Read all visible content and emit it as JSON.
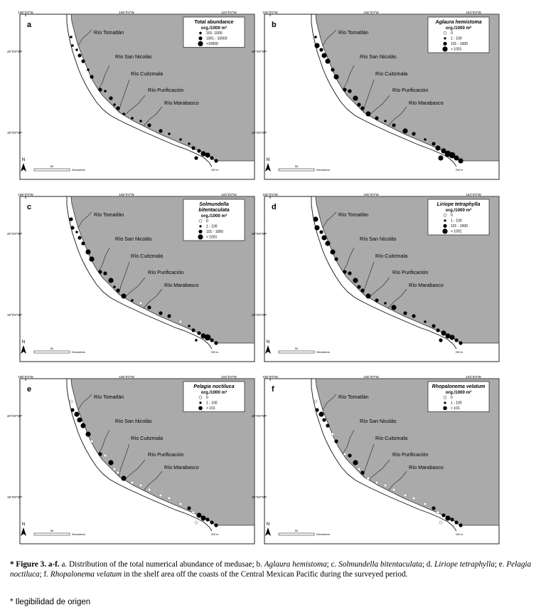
{
  "lon_ticks": [
    "106°0'0\"W",
    "105°0'0\"W",
    "104°0'0\"W"
  ],
  "lat_ticks": [
    "20°0'0\"N",
    "19°0'0\"N"
  ],
  "scale": {
    "value": "50",
    "unit": "Kilometers"
  },
  "north": "N",
  "isobath": "200 m",
  "rivers": [
    "Río Tomatlán",
    "Río San Nicolás",
    "Río Cuitzmala",
    "Río Purificación",
    "Río Marabasco"
  ],
  "panels": [
    {
      "letter": "a",
      "title": "Total abundance",
      "unit": "org./1000 m³",
      "legend": [
        {
          "label": "101- 1000",
          "size": 1.8,
          "fill": "#000"
        },
        {
          "label": "1001 - 10000",
          "size": 2.6,
          "fill": "#000"
        },
        {
          "label": ">10000",
          "size": 3.6,
          "fill": "#000"
        }
      ]
    },
    {
      "letter": "b",
      "title": "Aglaura hemistoma",
      "unit": "org./1000 m³",
      "legend": [
        {
          "label": "0",
          "size": 2.0,
          "fill": "#fff"
        },
        {
          "label": "1 - 100",
          "size": 1.6,
          "fill": "#000"
        },
        {
          "label": "101 - 1000",
          "size": 2.6,
          "fill": "#000"
        },
        {
          "label": "> 1001",
          "size": 3.6,
          "fill": "#000"
        }
      ]
    },
    {
      "letter": "c",
      "title": "Solmundella bitentaculata",
      "unit": "org./1000 m³",
      "legend": [
        {
          "label": "0",
          "size": 2.0,
          "fill": "#fff"
        },
        {
          "label": "1 - 100",
          "size": 1.6,
          "fill": "#000"
        },
        {
          "label": "101 - 1000",
          "size": 2.6,
          "fill": "#000"
        },
        {
          "label": "> 1001",
          "size": 3.6,
          "fill": "#000"
        }
      ]
    },
    {
      "letter": "d",
      "title": "Liriope tetraphylla",
      "unit": "org./1000 m³",
      "legend": [
        {
          "label": "0",
          "size": 2.0,
          "fill": "#fff"
        },
        {
          "label": "1 - 100",
          "size": 1.6,
          "fill": "#000"
        },
        {
          "label": "101 - 1000",
          "size": 2.6,
          "fill": "#000"
        },
        {
          "label": "> 1001",
          "size": 3.6,
          "fill": "#000"
        }
      ]
    },
    {
      "letter": "e",
      "title": "Pelagia noctiluca",
      "unit": "org./1000 m³",
      "legend": [
        {
          "label": "0",
          "size": 2.0,
          "fill": "#fff"
        },
        {
          "label": "1 - 100",
          "size": 1.6,
          "fill": "#000"
        },
        {
          "label": "> 101",
          "size": 2.8,
          "fill": "#000"
        }
      ]
    },
    {
      "letter": "f",
      "title": "Rhopalonema velatum",
      "unit": "org./1000 m³",
      "legend": [
        {
          "label": "0",
          "size": 2.0,
          "fill": "#fff"
        },
        {
          "label": "1 - 100",
          "size": 1.6,
          "fill": "#000"
        },
        {
          "label": "> 101",
          "size": 2.8,
          "fill": "#000"
        }
      ]
    }
  ],
  "caption": {
    "marker": "*",
    "label": "Figure 3. a-f.",
    "text_a": " a. Distribution of the total numerical abundance of medusae; b. ",
    "sp_b": "Aglaura hemistoma",
    "text_c": "; c. ",
    "sp_c": "Solmundella bitentaculata",
    "text_d": "; d. ",
    "sp_d": "Liriope tetraphylla",
    "text_e": "; e. ",
    "sp_e": "Pelagia noctiluca",
    "text_f": "; f. ",
    "sp_f": "Rhopalonema velatum",
    "text_end": " in the shelf area off the coasts of the Central Mexican Pacific during the surveyed period."
  },
  "note": "*  Ilegibilidad de origen",
  "colors": {
    "land": "#aaaaaa",
    "sea": "#ffffff",
    "outline": "#222222"
  }
}
